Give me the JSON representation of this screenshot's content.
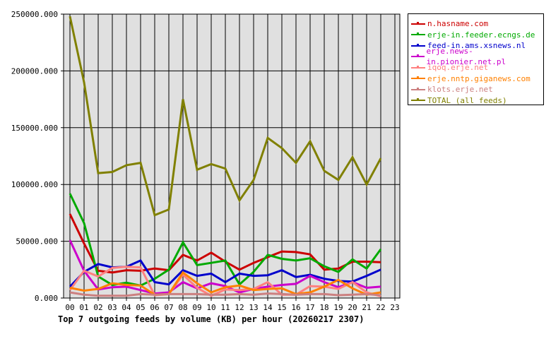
{
  "chart_data": {
    "type": "line",
    "title": "Top 7 outgoing feeds by volume (KB) per hour (20260217 2307)",
    "xlabel": "",
    "ylabel": "",
    "ylim": [
      0,
      250000
    ],
    "yticks": [
      "0.000",
      "50000.000",
      "100000.000",
      "150000.000",
      "200000.000",
      "250000.000"
    ],
    "categories": [
      "00",
      "01",
      "02",
      "03",
      "04",
      "05",
      "06",
      "07",
      "08",
      "09",
      "10",
      "11",
      "12",
      "13",
      "14",
      "15",
      "16",
      "17",
      "18",
      "19",
      "20",
      "21",
      "22",
      "23"
    ],
    "grid": true,
    "legend_position": "right",
    "series": [
      {
        "name": "n.hasname.com",
        "color": "#cc0000",
        "values": [
          74000,
          48000,
          24000,
          22500,
          24500,
          24000,
          26000,
          24500,
          38000,
          33000,
          40000,
          32000,
          25000,
          31000,
          36000,
          41000,
          40500,
          38500,
          25000,
          26000,
          32000,
          32000,
          31500,
          null
        ]
      },
      {
        "name": "erje-in.feeder.ecngs.de",
        "color": "#00aa00",
        "values": [
          92000,
          66000,
          19000,
          11500,
          13500,
          11000,
          17000,
          25000,
          49000,
          29000,
          31000,
          33000,
          12000,
          23000,
          38000,
          34500,
          33000,
          35000,
          28000,
          23000,
          34000,
          26000,
          43000,
          null
        ]
      },
      {
        "name": "feed-in.ams.xsnews.nl",
        "color": "#0000cc",
        "values": [
          10000,
          23000,
          30000,
          27000,
          27500,
          33000,
          14000,
          12000,
          24500,
          19500,
          21500,
          14000,
          21500,
          19500,
          20000,
          24500,
          18500,
          20500,
          17000,
          15000,
          14500,
          19500,
          25000,
          null
        ]
      },
      {
        "name": "erje.news-in.pionier.net.pl",
        "color": "#cc00cc",
        "values": [
          51000,
          24000,
          7500,
          9500,
          10000,
          7000,
          4000,
          5000,
          14000,
          8500,
          13000,
          10500,
          5000,
          8000,
          10000,
          11500,
          12500,
          19500,
          14000,
          9500,
          14000,
          9000,
          10000,
          null
        ]
      },
      {
        "name": "iqoq.erje.net",
        "color": "#ff8080",
        "values": [
          7000,
          24000,
          19000,
          26500,
          27500,
          27000,
          2500,
          3500,
          20500,
          9000,
          2000,
          7500,
          7000,
          8000,
          14000,
          3000,
          3000,
          10500,
          10000,
          8000,
          14000,
          5000,
          1500,
          null
        ]
      },
      {
        "name": "erje.nntp.giganews.com",
        "color": "#ff8000",
        "values": [
          9000,
          6500,
          8000,
          13000,
          11500,
          11000,
          3000,
          3500,
          22500,
          13000,
          5000,
          9500,
          11000,
          7000,
          8000,
          8500,
          3500,
          5000,
          10000,
          16000,
          8500,
          3000,
          5000,
          null
        ]
      },
      {
        "name": "klots.erje.net",
        "color": "#cc8080",
        "values": [
          5000,
          3000,
          2000,
          2000,
          2000,
          3500,
          3000,
          3500,
          3500,
          3500,
          3000,
          3000,
          3500,
          3000,
          4000,
          3500,
          3000,
          3500,
          3500,
          2500,
          3000,
          3500,
          2500,
          null
        ]
      },
      {
        "name": "TOTAL (all feeds)",
        "color": "#808000",
        "values": [
          248000,
          190000,
          110000,
          111000,
          117000,
          119000,
          73000,
          78000,
          175000,
          113000,
          118000,
          114000,
          86000,
          104000,
          141000,
          132000,
          119000,
          138000,
          112000,
          104000,
          124000,
          100000,
          123000,
          null
        ]
      }
    ]
  },
  "legend": {
    "items": [
      {
        "label": "n.hasname.com",
        "color": "#cc0000"
      },
      {
        "label": "erje-in.feeder.ecngs.de",
        "color": "#00aa00"
      },
      {
        "label": "feed-in.ams.xsnews.nl",
        "color": "#0000cc"
      },
      {
        "label": "erje.news-in.pionier.net.pl",
        "color": "#cc00cc"
      },
      {
        "label": "iqoq.erje.net",
        "color": "#ff8080"
      },
      {
        "label": "erje.nntp.giganews.com",
        "color": "#ff8000"
      },
      {
        "label": "klots.erje.net",
        "color": "#cc8080"
      },
      {
        "label": "TOTAL (all feeds)",
        "color": "#808000"
      }
    ]
  },
  "colors": {
    "plot_background": "#e0e0e0",
    "grid": "#000000",
    "page_background": "#ffffff"
  }
}
